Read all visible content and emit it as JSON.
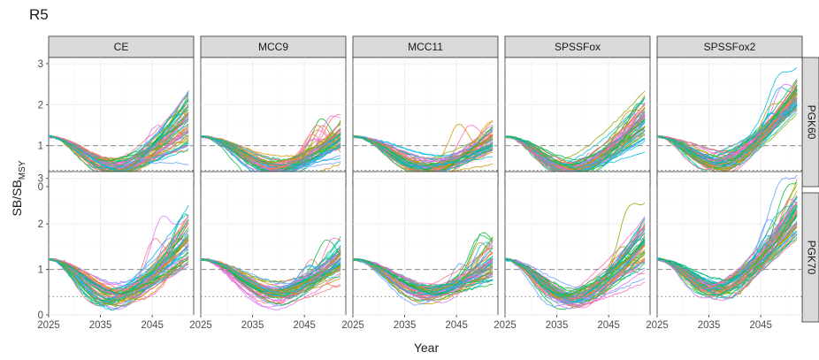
{
  "chart_data": {
    "type": "line",
    "title": "R5",
    "xlabel": "Year",
    "ylabel": {
      "main": "SB/SB",
      "sub": "MSY"
    },
    "xlim": [
      2025,
      2053
    ],
    "ylim": [
      0,
      3.15
    ],
    "x_ticks": [
      "2025",
      "2035",
      "2045"
    ],
    "y_ticks": [
      "0",
      "1",
      "2",
      "3"
    ],
    "grid": true,
    "reference_lines": [
      {
        "y": 1.0,
        "style": "dashed"
      },
      {
        "y": 0.4,
        "style": "dotted"
      }
    ],
    "columns": [
      "CE",
      "MCC9",
      "MCC11",
      "SPSSFox",
      "SPSSFox2"
    ],
    "rows": [
      "PGK60",
      "PGK70"
    ],
    "series_colors": [
      "#F8766D",
      "#D39200",
      "#93AA00",
      "#00BA38",
      "#00C19F",
      "#00B9E3",
      "#619CFF",
      "#DB72FB",
      "#FF61C3"
    ],
    "trajectories_per_panel": 60,
    "panels": [
      {
        "col": "CE",
        "row": "PGK60",
        "start": 1.22,
        "min_year": 2038,
        "min_median": 0.45,
        "end_median": 1.55,
        "end_spread": 0.6,
        "max_y": 2.35
      },
      {
        "col": "MCC9",
        "row": "PGK60",
        "start": 1.22,
        "min_year": 2040,
        "min_median": 0.45,
        "end_median": 1.15,
        "end_spread": 0.35,
        "max_y": 1.8
      },
      {
        "col": "MCC11",
        "row": "PGK60",
        "start": 1.22,
        "min_year": 2040,
        "min_median": 0.45,
        "end_median": 1.1,
        "end_spread": 0.35,
        "max_y": 1.8
      },
      {
        "col": "SPSSFox",
        "row": "PGK60",
        "start": 1.22,
        "min_year": 2038,
        "min_median": 0.4,
        "end_median": 1.6,
        "end_spread": 0.45,
        "max_y": 2.35
      },
      {
        "col": "SPSSFox2",
        "row": "PGK60",
        "start": 1.22,
        "min_year": 2037,
        "min_median": 0.55,
        "end_median": 2.3,
        "end_spread": 0.45,
        "max_y": 3.05
      },
      {
        "col": "CE",
        "row": "PGK70",
        "start": 1.22,
        "min_year": 2038,
        "min_median": 0.4,
        "end_median": 1.6,
        "end_spread": 0.6,
        "max_y": 2.4
      },
      {
        "col": "MCC9",
        "row": "PGK70",
        "start": 1.22,
        "min_year": 2040,
        "min_median": 0.45,
        "end_median": 1.2,
        "end_spread": 0.4,
        "max_y": 1.9
      },
      {
        "col": "MCC11",
        "row": "PGK70",
        "start": 1.22,
        "min_year": 2040,
        "min_median": 0.45,
        "end_median": 1.1,
        "end_spread": 0.4,
        "max_y": 1.9
      },
      {
        "col": "SPSSFox",
        "row": "PGK70",
        "start": 1.22,
        "min_year": 2038,
        "min_median": 0.35,
        "end_median": 1.5,
        "end_spread": 0.55,
        "max_y": 2.5
      },
      {
        "col": "SPSSFox2",
        "row": "PGK70",
        "start": 1.22,
        "min_year": 2037,
        "min_median": 0.55,
        "end_median": 2.3,
        "end_spread": 0.5,
        "max_y": 3.05
      }
    ]
  }
}
